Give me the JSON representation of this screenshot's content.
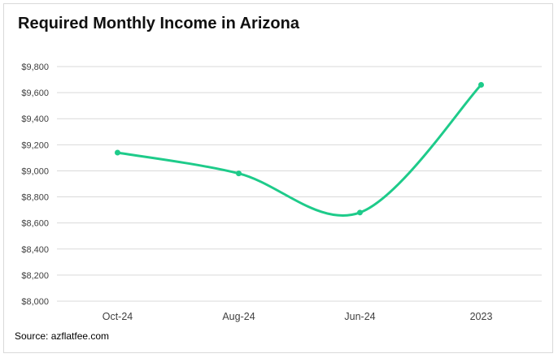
{
  "chart_data": {
    "type": "line",
    "title": "Required Monthly Income in Arizona",
    "categories": [
      "Oct-24",
      "Aug-24",
      "Jun-24",
      "2023"
    ],
    "series": [
      {
        "values": [
          9140,
          8980,
          8680,
          9660
        ],
        "color": "#1ecb8a"
      }
    ],
    "ylim": [
      8000,
      9800
    ],
    "yticks": [
      8000,
      8200,
      8400,
      8600,
      8800,
      9000,
      9200,
      9400,
      9600,
      9800
    ],
    "ytick_labels": [
      "$8,000",
      "$8,200",
      "$8,400",
      "$8,600",
      "$8,800",
      "$9,000",
      "$9,200",
      "$9,400",
      "$9,600",
      "$9,800"
    ],
    "grid": true,
    "smooth": true,
    "markers": true,
    "legend": "none"
  },
  "footer": {
    "source": "Source: azflatfee.com"
  },
  "colors": {
    "line": "#1ecb8a",
    "grid": "#d9d9d9",
    "axis_text": "#404040"
  }
}
